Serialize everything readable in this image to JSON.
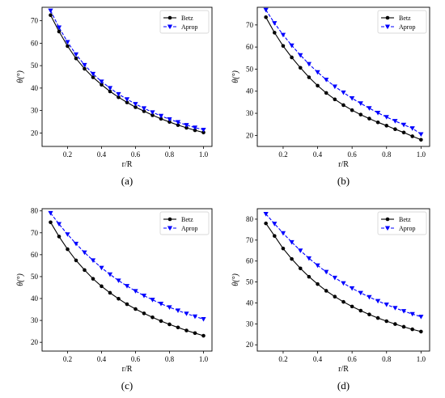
{
  "chart_data": [
    {
      "type": "line",
      "caption": "(a)",
      "xlabel": "r/R",
      "ylabel": "θ(°)",
      "xlim": [
        0.05,
        1.05
      ],
      "ylim": [
        14,
        76
      ],
      "xticks": [
        "0.2",
        "0.4",
        "0.6",
        "0.8",
        "1.0"
      ],
      "yticks": [
        "20",
        "30",
        "40",
        "50",
        "60",
        "70"
      ],
      "legend_position": "top-right",
      "x": [
        0.1,
        0.15,
        0.2,
        0.25,
        0.3,
        0.35,
        0.4,
        0.45,
        0.5,
        0.55,
        0.6,
        0.65,
        0.7,
        0.75,
        0.8,
        0.85,
        0.9,
        0.95,
        1.0
      ],
      "series": [
        {
          "name": "Betz",
          "color": "#000000",
          "marker": "circle",
          "values": [
            72.5,
            65.2,
            58.7,
            53.2,
            48.6,
            44.8,
            41.5,
            38.5,
            35.9,
            33.6,
            31.5,
            29.7,
            27.9,
            26.3,
            24.9,
            23.5,
            22.3,
            21.2,
            20.2
          ]
        },
        {
          "name": "Aprop",
          "color": "#0000ff",
          "marker": "triangle-down",
          "values": [
            74.5,
            67.0,
            60.5,
            55.0,
            50.3,
            46.3,
            42.9,
            40.0,
            37.3,
            35.0,
            32.9,
            31.0,
            29.2,
            27.6,
            26.1,
            24.8,
            23.5,
            22.4,
            21.4
          ]
        }
      ]
    },
    {
      "type": "line",
      "caption": "(b)",
      "xlabel": "r/R",
      "ylabel": "θ(°)",
      "xlim": [
        0.05,
        1.05
      ],
      "ylim": [
        15,
        78
      ],
      "xticks": [
        "0.2",
        "0.4",
        "0.6",
        "0.8",
        "1.0"
      ],
      "yticks": [
        "20",
        "30",
        "40",
        "50",
        "60",
        "70"
      ],
      "legend_position": "top-right",
      "x": [
        0.1,
        0.15,
        0.2,
        0.25,
        0.3,
        0.35,
        0.4,
        0.45,
        0.5,
        0.55,
        0.6,
        0.65,
        0.7,
        0.75,
        0.8,
        0.85,
        0.9,
        0.95,
        1.0
      ],
      "series": [
        {
          "name": "Betz",
          "color": "#000000",
          "marker": "circle",
          "values": [
            73.5,
            66.5,
            60.5,
            55.3,
            50.6,
            46.3,
            42.5,
            39.2,
            36.3,
            33.7,
            31.4,
            29.4,
            27.6,
            25.9,
            24.4,
            22.8,
            21.3,
            19.6,
            18.0
          ]
        },
        {
          "name": "Aprop",
          "color": "#0000ff",
          "marker": "triangle-down",
          "values": [
            76.8,
            70.8,
            65.5,
            60.7,
            56.3,
            52.3,
            48.6,
            45.2,
            42.1,
            39.4,
            36.8,
            34.5,
            32.3,
            30.2,
            28.3,
            26.5,
            24.8,
            23.2,
            20.5
          ]
        }
      ]
    },
    {
      "type": "line",
      "caption": "(c)",
      "xlabel": "r/R",
      "ylabel": "θ(°)",
      "xlim": [
        0.05,
        1.05
      ],
      "ylim": [
        16,
        81
      ],
      "xticks": [
        "0.2",
        "0.4",
        "0.6",
        "0.8",
        "1.0"
      ],
      "yticks": [
        "20",
        "30",
        "40",
        "50",
        "60",
        "70",
        "80"
      ],
      "legend_position": "top-right",
      "x": [
        0.1,
        0.15,
        0.2,
        0.25,
        0.3,
        0.35,
        0.4,
        0.45,
        0.5,
        0.55,
        0.6,
        0.65,
        0.7,
        0.75,
        0.8,
        0.85,
        0.9,
        0.95,
        1.0
      ],
      "series": [
        {
          "name": "Betz",
          "color": "#000000",
          "marker": "circle",
          "values": [
            74.8,
            68.3,
            62.5,
            57.4,
            53.0,
            49.0,
            45.6,
            42.6,
            39.9,
            37.4,
            35.2,
            33.2,
            31.4,
            29.7,
            28.2,
            26.8,
            25.4,
            24.2,
            23.0
          ]
        },
        {
          "name": "Aprop",
          "color": "#0000ff",
          "marker": "triangle-down",
          "values": [
            79.0,
            74.0,
            69.3,
            65.0,
            61.0,
            57.4,
            54.0,
            51.0,
            48.2,
            45.7,
            43.4,
            41.3,
            39.4,
            37.6,
            36.0,
            34.5,
            33.1,
            31.8,
            30.6
          ]
        }
      ]
    },
    {
      "type": "line",
      "caption": "(d)",
      "xlabel": "r/R",
      "ylabel": "θ(°)",
      "xlim": [
        0.05,
        1.05
      ],
      "ylim": [
        17,
        85
      ],
      "xticks": [
        "0.2",
        "0.4",
        "0.6",
        "0.8",
        "1.0"
      ],
      "yticks": [
        "20",
        "30",
        "40",
        "50",
        "60",
        "70",
        "80"
      ],
      "legend_position": "top-right",
      "x": [
        0.1,
        0.15,
        0.2,
        0.25,
        0.3,
        0.35,
        0.4,
        0.45,
        0.5,
        0.55,
        0.6,
        0.65,
        0.7,
        0.75,
        0.8,
        0.85,
        0.9,
        0.95,
        1.0
      ],
      "series": [
        {
          "name": "Betz",
          "color": "#000000",
          "marker": "circle",
          "values": [
            78.0,
            72.0,
            66.0,
            61.0,
            56.5,
            52.5,
            49.0,
            45.8,
            43.0,
            40.5,
            38.3,
            36.3,
            34.5,
            32.8,
            31.3,
            29.9,
            28.6,
            27.4,
            26.3
          ]
        },
        {
          "name": "Aprop",
          "color": "#0000ff",
          "marker": "triangle-down",
          "values": [
            82.5,
            77.8,
            73.3,
            69.0,
            65.0,
            61.3,
            57.9,
            54.8,
            52.0,
            49.4,
            47.0,
            44.8,
            42.8,
            40.9,
            39.2,
            37.6,
            36.1,
            34.7,
            33.4
          ]
        }
      ]
    }
  ]
}
